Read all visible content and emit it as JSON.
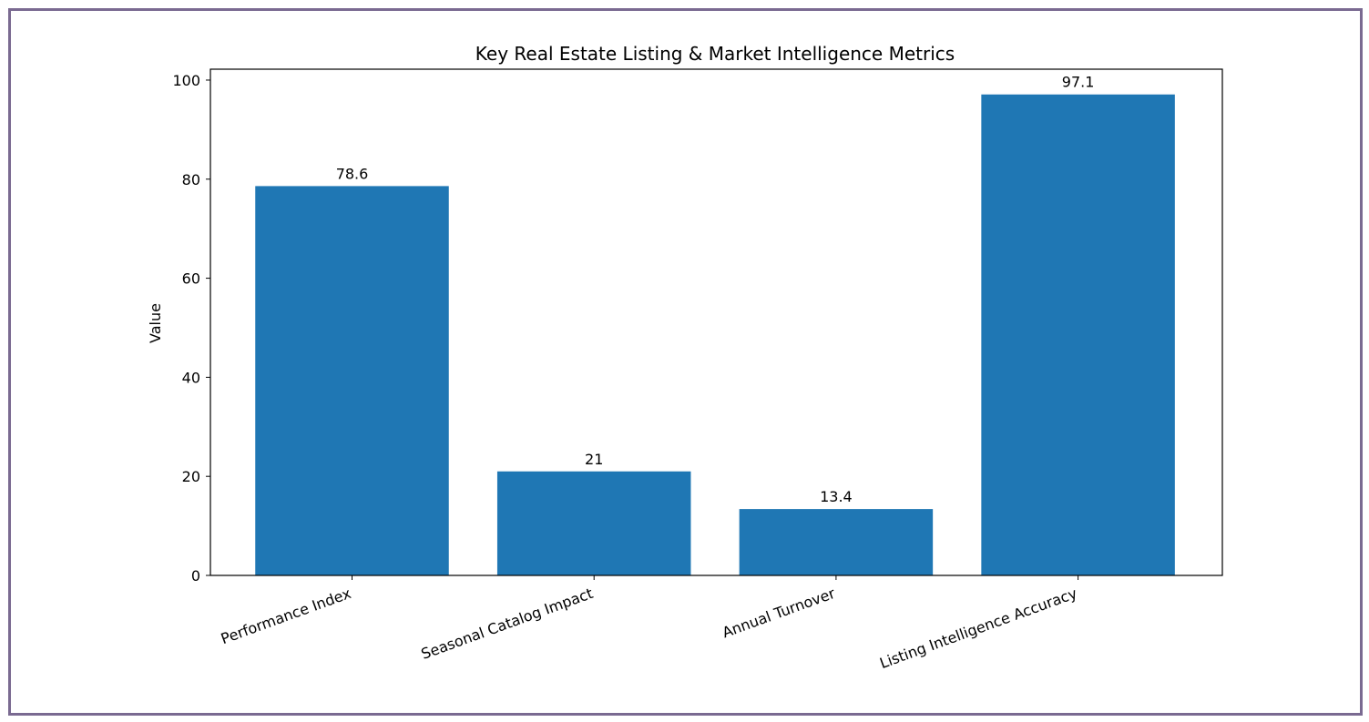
{
  "chart_data": {
    "type": "bar",
    "title": "Key Real Estate Listing & Market Intelligence Metrics",
    "xlabel": "",
    "ylabel": "Value",
    "categories": [
      "Performance Index",
      "Seasonal Catalog Impact",
      "Annual Turnover",
      "Listing Intelligence Accuracy"
    ],
    "values": [
      78.6,
      21,
      13.4,
      97.1
    ],
    "value_labels": [
      "78.6",
      "21",
      "13.4",
      "97.1"
    ],
    "ylim": [
      0,
      102.2
    ],
    "yticks": [
      0,
      20,
      40,
      60,
      80,
      100
    ],
    "bar_color": "#1f77b4",
    "frame_color": "#7a6a91",
    "grid": false,
    "legend": "none"
  }
}
